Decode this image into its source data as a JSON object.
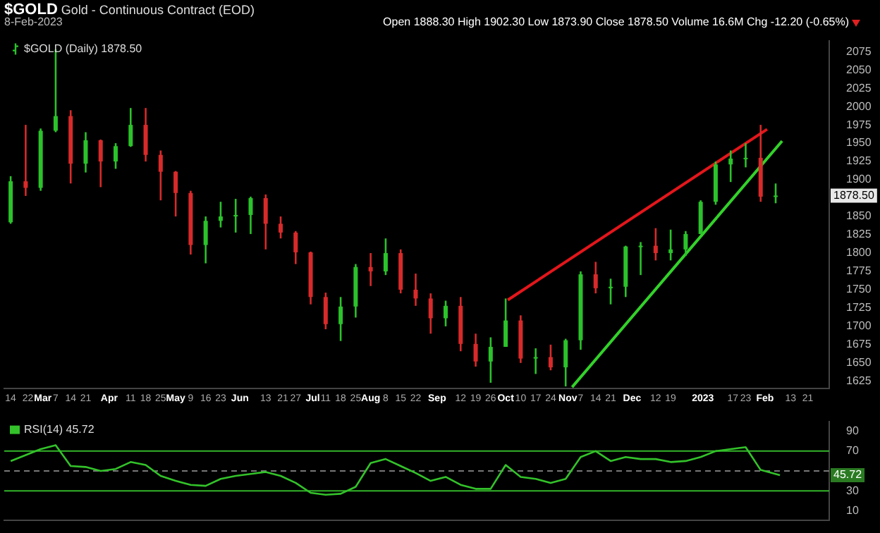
{
  "chart_data": [
    {
      "type": "candlestick",
      "title": "$GOLD",
      "subtitle": "Gold - Continuous Contract (EOD)",
      "annotations": [
        "8-Feb-2023",
        "Open 1888.30 High 1902.30 Low 1873.90 Close 1878.50 Volume 16.6M Chg -12.20 (-0.65%)",
        "$GOLD (Daily) 1878.50",
        {
          "text": "1878.50",
          "y": 1878.5
        }
      ],
      "x": [
        "2022-02-14",
        "2022-02-21",
        "2022-02-28",
        "2022-03-07",
        "2022-03-14",
        "2022-03-21",
        "2022-03-28",
        "2022-04-04",
        "2022-04-11",
        "2022-04-18",
        "2022-04-25",
        "2022-05-02",
        "2022-05-09",
        "2022-05-16",
        "2022-05-23",
        "2022-05-30",
        "2022-06-06",
        "2022-06-13",
        "2022-06-20",
        "2022-06-27",
        "2022-07-04",
        "2022-07-11",
        "2022-07-18",
        "2022-07-25",
        "2022-08-01",
        "2022-08-08",
        "2022-08-15",
        "2022-08-22",
        "2022-08-29",
        "2022-09-05",
        "2022-09-12",
        "2022-09-19",
        "2022-09-26",
        "2022-10-03",
        "2022-10-10",
        "2022-10-17",
        "2022-10-24",
        "2022-10-31",
        "2022-11-07",
        "2022-11-14",
        "2022-11-21",
        "2022-11-28",
        "2022-12-05",
        "2022-12-12",
        "2022-12-19",
        "2022-12-26",
        "2023-01-02",
        "2023-01-09",
        "2023-01-16",
        "2023-01-23",
        "2023-01-30",
        "2023-02-06"
      ],
      "ohlc": [
        [
          1842,
          1905,
          1840,
          1898
        ],
        [
          1898,
          1975,
          1878,
          1889
        ],
        [
          1889,
          1970,
          1885,
          1967
        ],
        [
          1967,
          2078,
          1965,
          1987
        ],
        [
          1987,
          1995,
          1895,
          1922
        ],
        [
          1922,
          1965,
          1910,
          1954
        ],
        [
          1954,
          1955,
          1890,
          1925
        ],
        [
          1925,
          1950,
          1915,
          1946
        ],
        [
          1946,
          1998,
          1945,
          1975
        ],
        [
          1975,
          1998,
          1925,
          1934
        ],
        [
          1934,
          1940,
          1872,
          1911
        ],
        [
          1911,
          1912,
          1850,
          1882
        ],
        [
          1882,
          1885,
          1798,
          1811
        ],
        [
          1811,
          1850,
          1786,
          1844
        ],
        [
          1844,
          1870,
          1835,
          1850
        ],
        [
          1850,
          1874,
          1828,
          1852
        ],
        [
          1852,
          1877,
          1826,
          1875
        ],
        [
          1875,
          1880,
          1805,
          1840
        ],
        [
          1840,
          1850,
          1820,
          1828
        ],
        [
          1828,
          1830,
          1785,
          1801
        ],
        [
          1801,
          1802,
          1730,
          1740
        ],
        [
          1740,
          1746,
          1696,
          1703
        ],
        [
          1703,
          1740,
          1680,
          1727
        ],
        [
          1727,
          1785,
          1712,
          1781
        ],
        [
          1781,
          1800,
          1755,
          1775
        ],
        [
          1775,
          1820,
          1770,
          1800
        ],
        [
          1800,
          1805,
          1745,
          1750
        ],
        [
          1750,
          1772,
          1728,
          1738
        ],
        [
          1738,
          1745,
          1690,
          1711
        ],
        [
          1711,
          1735,
          1700,
          1728
        ],
        [
          1728,
          1740,
          1666,
          1676
        ],
        [
          1676,
          1690,
          1645,
          1652
        ],
        [
          1652,
          1685,
          1623,
          1672
        ],
        [
          1672,
          1738,
          1672,
          1708
        ],
        [
          1708,
          1715,
          1650,
          1656
        ],
        [
          1656,
          1670,
          1635,
          1658
        ],
        [
          1658,
          1675,
          1640,
          1644
        ],
        [
          1644,
          1683,
          1618,
          1681
        ],
        [
          1681,
          1775,
          1668,
          1771
        ],
        [
          1771,
          1788,
          1745,
          1752
        ],
        [
          1752,
          1765,
          1730,
          1754
        ],
        [
          1754,
          1810,
          1740,
          1809
        ],
        [
          1809,
          1815,
          1770,
          1810
        ],
        [
          1810,
          1834,
          1790,
          1800
        ],
        [
          1800,
          1832,
          1790,
          1805
        ],
        [
          1805,
          1830,
          1796,
          1826
        ],
        [
          1826,
          1872,
          1826,
          1870
        ],
        [
          1870,
          1925,
          1866,
          1921
        ],
        [
          1921,
          1940,
          1897,
          1929
        ],
        [
          1929,
          1950,
          1917,
          1930
        ],
        [
          1930,
          1975,
          1870,
          1877
        ],
        [
          1877,
          1895,
          1868,
          1878.5
        ]
      ],
      "colors": [
        "#2bc22b",
        "#d82a2a",
        "#2bc22b",
        "#2bc22b",
        "#d82a2a",
        "#2bc22b",
        "#d82a2a",
        "#2bc22b",
        "#2bc22b",
        "#d82a2a",
        "#d82a2a",
        "#d82a2a",
        "#d82a2a",
        "#2bc22b",
        "#2bc22b",
        "#2bc22b",
        "#2bc22b",
        "#d82a2a",
        "#d82a2a",
        "#d82a2a",
        "#d82a2a",
        "#d82a2a",
        "#2bc22b",
        "#2bc22b",
        "#d82a2a",
        "#2bc22b",
        "#d82a2a",
        "#d82a2a",
        "#d82a2a",
        "#2bc22b",
        "#d82a2a",
        "#d82a2a",
        "#2bc22b",
        "#2bc22b",
        "#d82a2a",
        "#2bc22b",
        "#d82a2a",
        "#2bc22b",
        "#2bc22b",
        "#d82a2a",
        "#2bc22b",
        "#2bc22b",
        "#2bc22b",
        "#d82a2a",
        "#2bc22b",
        "#2bc22b",
        "#2bc22b",
        "#2bc22b",
        "#2bc22b",
        "#2bc22b",
        "#d82a2a",
        "#2bc22b"
      ],
      "series": [
        {
          "type": "line",
          "color": "#e3161b",
          "x": [
            "2022-10-04",
            "2023-02-02"
          ],
          "values": [
            1736,
            1969
          ]
        },
        {
          "type": "line",
          "color": "#33d22a",
          "x": [
            "2022-11-03",
            "2023-02-09"
          ],
          "values": [
            1617,
            1953
          ]
        }
      ],
      "xlim": [
        "2022-02-11",
        "2023-03-03"
      ],
      "xticks": [
        {
          "value": "2022-02-14",
          "label": "14"
        },
        {
          "value": "2022-02-22",
          "label": "22"
        },
        {
          "value": "2022-03-01",
          "label": "Mar"
        },
        {
          "value": "2022-03-07",
          "label": "7"
        },
        {
          "value": "2022-03-14",
          "label": "14"
        },
        {
          "value": "2022-03-21",
          "label": "21"
        },
        {
          "value": "2022-04-01",
          "label": "Apr"
        },
        {
          "value": "2022-04-11",
          "label": "11"
        },
        {
          "value": "2022-04-18",
          "label": "18"
        },
        {
          "value": "2022-04-25",
          "label": "25"
        },
        {
          "value": "2022-05-02",
          "label": "May"
        },
        {
          "value": "2022-05-09",
          "label": "9"
        },
        {
          "value": "2022-05-16",
          "label": "16"
        },
        {
          "value": "2022-05-23",
          "label": "23"
        },
        {
          "value": "2022-06-01",
          "label": "Jun"
        },
        {
          "value": "2022-06-13",
          "label": "13"
        },
        {
          "value": "2022-06-21",
          "label": "21"
        },
        {
          "value": "2022-06-27",
          "label": "27"
        },
        {
          "value": "2022-07-05",
          "label": "Jul"
        },
        {
          "value": "2022-07-11",
          "label": "11"
        },
        {
          "value": "2022-07-18",
          "label": "18"
        },
        {
          "value": "2022-07-25",
          "label": "25"
        },
        {
          "value": "2022-08-01",
          "label": "Aug"
        },
        {
          "value": "2022-08-08",
          "label": "8"
        },
        {
          "value": "2022-08-15",
          "label": "15"
        },
        {
          "value": "2022-08-22",
          "label": "22"
        },
        {
          "value": "2022-09-01",
          "label": "Sep"
        },
        {
          "value": "2022-09-12",
          "label": "12"
        },
        {
          "value": "2022-09-19",
          "label": "19"
        },
        {
          "value": "2022-09-26",
          "label": "26"
        },
        {
          "value": "2022-10-03",
          "label": "Oct"
        },
        {
          "value": "2022-10-10",
          "label": "10"
        },
        {
          "value": "2022-10-17",
          "label": "17"
        },
        {
          "value": "2022-10-24",
          "label": "24"
        },
        {
          "value": "2022-11-01",
          "label": "Nov"
        },
        {
          "value": "2022-11-07",
          "label": "7"
        },
        {
          "value": "2022-11-14",
          "label": "14"
        },
        {
          "value": "2022-11-21",
          "label": "21"
        },
        {
          "value": "2022-12-01",
          "label": "Dec"
        },
        {
          "value": "2022-12-12",
          "label": "12"
        },
        {
          "value": "2022-12-19",
          "label": "19"
        },
        {
          "value": "2023-01-03",
          "label": "2023"
        },
        {
          "value": "2023-01-17",
          "label": "17"
        },
        {
          "value": "2023-01-23",
          "label": "23"
        },
        {
          "value": "2023-02-01",
          "label": "Feb"
        },
        {
          "value": "2023-02-13",
          "label": "13"
        },
        {
          "value": "2023-02-21",
          "label": "21"
        }
      ],
      "ylim": [
        1615,
        2090
      ],
      "yticks": [
        1625,
        1650,
        1675,
        1700,
        1725,
        1750,
        1775,
        1800,
        1825,
        1850,
        1900,
        1925,
        1950,
        1975,
        2000,
        2025,
        2050,
        2075
      ]
    },
    {
      "type": "line",
      "tick_labels": "y",
      "legend": "top left",
      "series": [
        {
          "name": "RSI(14) 45.72",
          "color": "#33c22a",
          "x": [
            "2022-02-14",
            "2022-02-21",
            "2022-02-28",
            "2022-03-07",
            "2022-03-14",
            "2022-03-21",
            "2022-03-28",
            "2022-04-04",
            "2022-04-11",
            "2022-04-18",
            "2022-04-25",
            "2022-05-02",
            "2022-05-09",
            "2022-05-16",
            "2022-05-23",
            "2022-05-30",
            "2022-06-06",
            "2022-06-13",
            "2022-06-20",
            "2022-06-27",
            "2022-07-04",
            "2022-07-11",
            "2022-07-18",
            "2022-07-25",
            "2022-08-01",
            "2022-08-08",
            "2022-08-15",
            "2022-08-22",
            "2022-08-29",
            "2022-09-05",
            "2022-09-12",
            "2022-09-19",
            "2022-09-26",
            "2022-10-03",
            "2022-10-10",
            "2022-10-17",
            "2022-10-24",
            "2022-10-31",
            "2022-11-07",
            "2022-11-14",
            "2022-11-21",
            "2022-11-28",
            "2022-12-05",
            "2022-12-12",
            "2022-12-19",
            "2022-12-26",
            "2023-01-02",
            "2023-01-09",
            "2023-01-16",
            "2023-01-23",
            "2023-01-30",
            "2023-02-08"
          ],
          "values": [
            60,
            66,
            72,
            76,
            55,
            54,
            50,
            52,
            59,
            56,
            45,
            40,
            36,
            35,
            42,
            45,
            47,
            49,
            45,
            38,
            28,
            26,
            27,
            34,
            58,
            62,
            55,
            48,
            40,
            44,
            36,
            32,
            32,
            56,
            44,
            42,
            38,
            42,
            64,
            70,
            60,
            64,
            62,
            62,
            59,
            60,
            64,
            70,
            72,
            74,
            51,
            45.72
          ]
        }
      ],
      "annotations": [
        {
          "text": "45.72",
          "y": 45.72
        }
      ],
      "ref_lines": [
        {
          "axis": "y",
          "value": 70,
          "color": "#33b52a",
          "line_style": "solid"
        },
        {
          "axis": "y",
          "value": 50,
          "color": "#777777",
          "line_style": "dashed"
        },
        {
          "axis": "y",
          "value": 30,
          "color": "#33b52a",
          "line_style": "solid"
        }
      ],
      "xlim": [
        "2022-02-11",
        "2023-03-03"
      ],
      "ylim": [
        0,
        100
      ],
      "yticks": [
        10,
        30,
        70,
        90
      ]
    }
  ]
}
